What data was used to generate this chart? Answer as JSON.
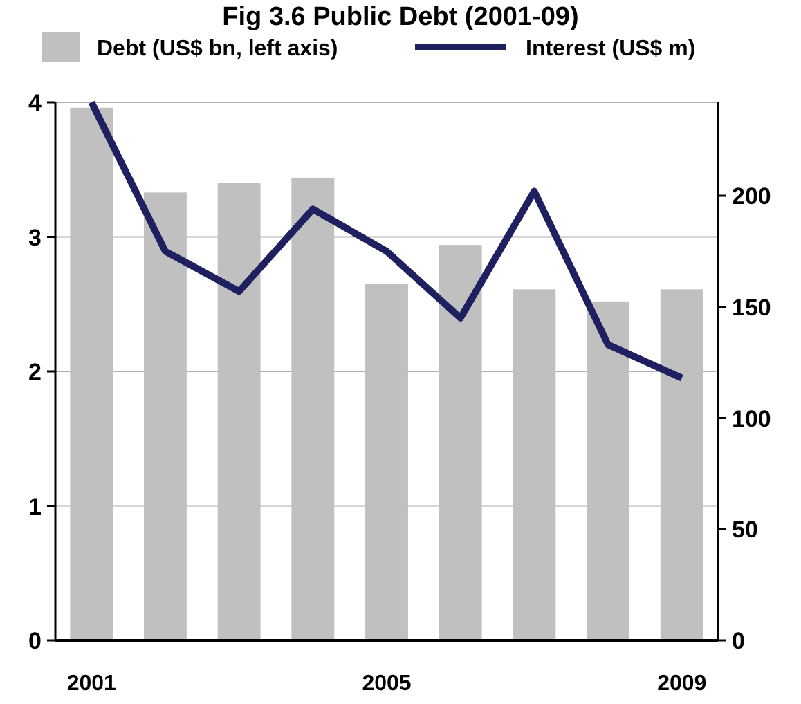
{
  "chart_data": {
    "type": "bar",
    "title": "Fig 3.6 Public Debt (2001-09)",
    "categories": [
      "2001",
      null,
      null,
      null,
      "2005",
      null,
      null,
      null,
      "2009"
    ],
    "series": [
      {
        "name": "Debt (US$ bn, left axis)",
        "color": "#c0c0c0",
        "values": [
          3.96,
          3.33,
          3.4,
          3.44,
          2.65,
          2.94,
          2.61,
          2.52,
          2.61
        ]
      },
      {
        "name": "Interest (US$ m)",
        "type": "line",
        "axis": "y2",
        "color": "#1f2060",
        "values": [
          242,
          175,
          157,
          194,
          175,
          145,
          202,
          133,
          118
        ]
      }
    ],
    "ylim": [
      0,
      4
    ],
    "yticks": [
      0,
      1,
      2,
      3,
      4
    ],
    "y2lim": [
      0,
      242
    ],
    "y2ticks": [
      0,
      50,
      100,
      150,
      200
    ],
    "grid": "y",
    "legend": "top",
    "marker": "none",
    "line_style": "solid"
  }
}
